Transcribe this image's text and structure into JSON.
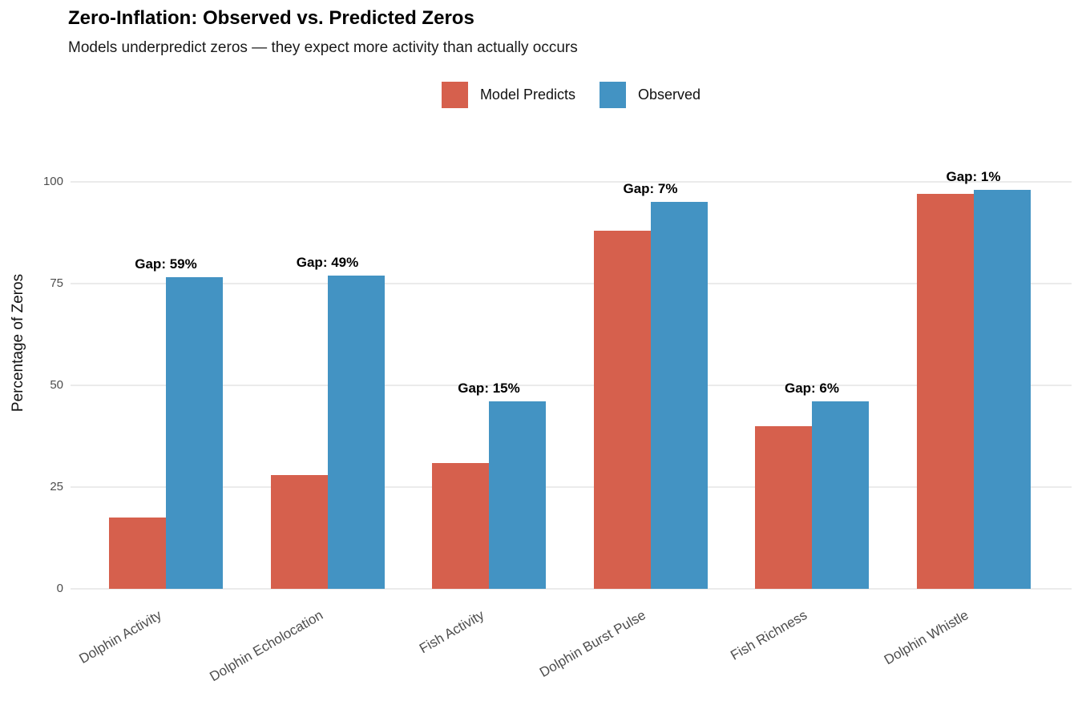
{
  "header": {
    "title": "Zero-Inflation: Observed vs. Predicted Zeros",
    "subtitle": "Models underpredict zeros — they expect more activity than actually occurs"
  },
  "legend": {
    "items": [
      {
        "label": "Model Predicts",
        "color": "#d6604d"
      },
      {
        "label": "Observed",
        "color": "#4393c3"
      }
    ]
  },
  "chart_data": {
    "type": "bar",
    "title": "Zero-Inflation: Observed vs. Predicted Zeros",
    "subtitle": "Models underpredict zeros — they expect more activity than actually occurs",
    "categories": [
      "Dolphin Activity",
      "Dolphin Echolocation",
      "Fish Activity",
      "Dolphin Burst Pulse",
      "Fish Richness",
      "Dolphin Whistle"
    ],
    "series": [
      {
        "name": "Model Predicts",
        "color": "#d6604d",
        "values": [
          17.5,
          28,
          31,
          88,
          40,
          97
        ]
      },
      {
        "name": "Observed",
        "color": "#4393c3",
        "values": [
          76.5,
          77,
          46,
          95,
          46,
          98
        ]
      }
    ],
    "gap_labels": [
      "Gap: 59%",
      "Gap: 49%",
      "Gap: 15%",
      "Gap: 7%",
      "Gap: 6%",
      "Gap: 1%"
    ],
    "gap_values": [
      59,
      49,
      15,
      7,
      6,
      1
    ],
    "xlabel": "",
    "ylabel": "Percentage of Zeros",
    "yticks": [
      0,
      25,
      50,
      75,
      100
    ],
    "ylim": [
      0,
      100
    ],
    "grid": "horizontal-major",
    "legend_position": "top-center",
    "bar_layout": "dodged"
  }
}
